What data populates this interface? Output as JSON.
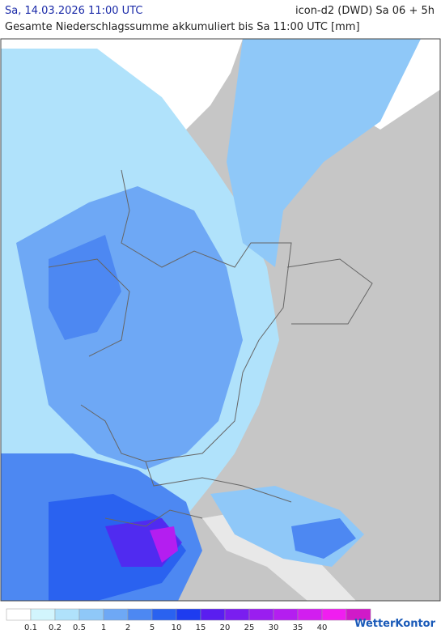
{
  "header": {
    "title": "Sa, 14.03.2026 11:00 UTC",
    "model": "icon-d2 (DWD) Sa 06 + 5h",
    "subtitle": "Gesamte Niederschlagssumme akkumuliert bis Sa 11:00 UTC [mm]"
  },
  "legend": {
    "colors": [
      "#ffffff",
      "#d2f5fd",
      "#b0e2fb",
      "#8fc8f8",
      "#6ea8f5",
      "#4d88f2",
      "#2a62f0",
      "#1e3cf0",
      "#5a1ef0",
      "#7a1ef0",
      "#9a1ef0",
      "#b41ef0",
      "#d21ef0",
      "#f01ef0",
      "#d01ac8"
    ],
    "labels": [
      "0.1",
      "0.2",
      "0.5",
      "1",
      "2",
      "5",
      "10",
      "15",
      "20",
      "25",
      "30",
      "35",
      "40"
    ]
  },
  "brand": "WetterKontor"
}
